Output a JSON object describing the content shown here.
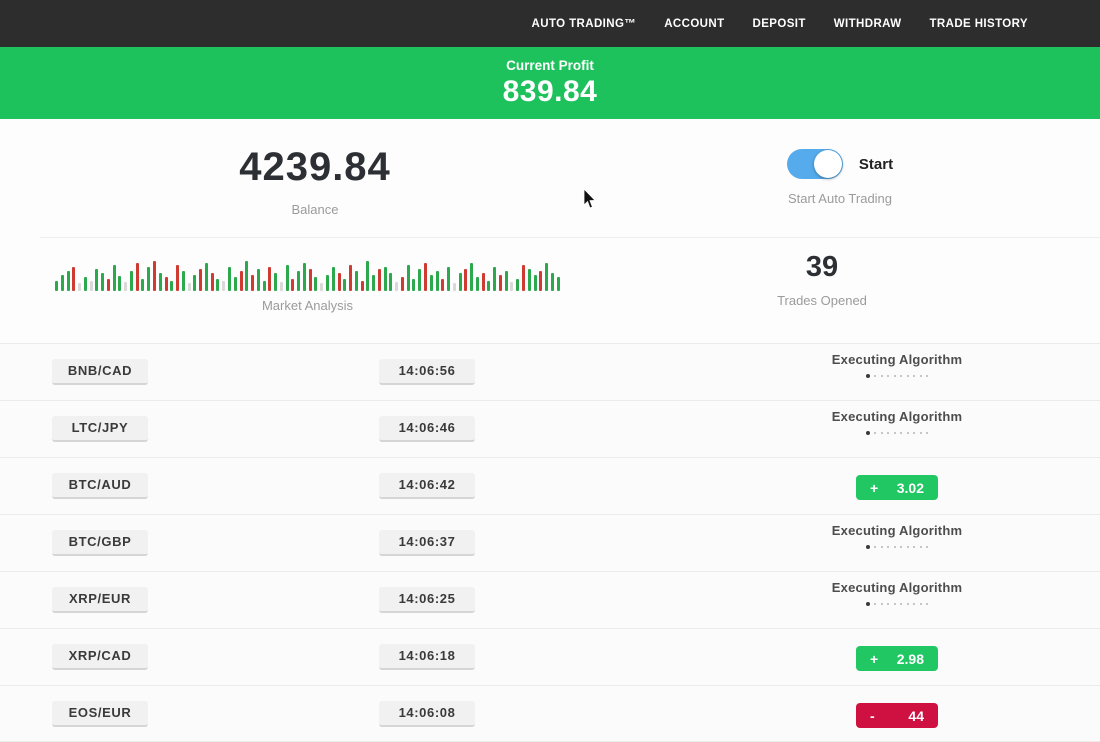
{
  "nav": {
    "items": [
      {
        "id": "auto-trading",
        "label": "AUTO TRADING™"
      },
      {
        "id": "account",
        "label": "ACCOUNT"
      },
      {
        "id": "deposit",
        "label": "DEPOSIT"
      },
      {
        "id": "withdraw",
        "label": "WITHDRAW"
      },
      {
        "id": "trade-history",
        "label": "TRADE HISTORY"
      }
    ]
  },
  "profit_banner": {
    "label": "Current Profit",
    "value": "839.84"
  },
  "stats": {
    "balance": {
      "value": "4239.84",
      "label": "Balance"
    },
    "auto_trading": {
      "toggle_label": "Start",
      "label": "Start Auto Trading",
      "toggle_on": true
    },
    "market_analysis": {
      "label": "Market Analysis",
      "bars": [
        [
          "g",
          10
        ],
        [
          "g",
          16
        ],
        [
          "g",
          20
        ],
        [
          "r",
          24
        ],
        [
          "l",
          8
        ],
        [
          "g",
          14
        ],
        [
          "l",
          10
        ],
        [
          "g",
          22
        ],
        [
          "g",
          18
        ],
        [
          "r",
          12
        ],
        [
          "g",
          26
        ],
        [
          "g",
          15
        ],
        [
          "l",
          9
        ],
        [
          "g",
          20
        ],
        [
          "r",
          28
        ],
        [
          "g",
          12
        ],
        [
          "g",
          24
        ],
        [
          "r",
          30
        ],
        [
          "g",
          18
        ],
        [
          "r",
          14
        ],
        [
          "g",
          10
        ],
        [
          "r",
          26
        ],
        [
          "g",
          20
        ],
        [
          "l",
          8
        ],
        [
          "g",
          16
        ],
        [
          "r",
          22
        ],
        [
          "g",
          28
        ],
        [
          "r",
          18
        ],
        [
          "g",
          12
        ],
        [
          "l",
          10
        ],
        [
          "g",
          24
        ],
        [
          "g",
          14
        ],
        [
          "r",
          20
        ],
        [
          "g",
          30
        ],
        [
          "r",
          16
        ],
        [
          "g",
          22
        ],
        [
          "g",
          10
        ],
        [
          "r",
          24
        ],
        [
          "g",
          18
        ],
        [
          "l",
          9
        ],
        [
          "g",
          26
        ],
        [
          "r",
          12
        ],
        [
          "g",
          20
        ],
        [
          "g",
          28
        ],
        [
          "r",
          22
        ],
        [
          "g",
          14
        ],
        [
          "l",
          8
        ],
        [
          "g",
          16
        ],
        [
          "g",
          24
        ],
        [
          "r",
          18
        ],
        [
          "g",
          12
        ],
        [
          "r",
          26
        ],
        [
          "g",
          20
        ],
        [
          "r",
          10
        ],
        [
          "g",
          30
        ],
        [
          "g",
          16
        ],
        [
          "r",
          22
        ],
        [
          "g",
          24
        ],
        [
          "g",
          18
        ],
        [
          "l",
          9
        ],
        [
          "r",
          14
        ],
        [
          "g",
          26
        ],
        [
          "g",
          12
        ],
        [
          "g",
          22
        ],
        [
          "r",
          28
        ],
        [
          "g",
          16
        ],
        [
          "g",
          20
        ],
        [
          "r",
          12
        ],
        [
          "g",
          24
        ],
        [
          "l",
          8
        ],
        [
          "g",
          18
        ],
        [
          "r",
          22
        ],
        [
          "g",
          28
        ],
        [
          "g",
          14
        ],
        [
          "r",
          18
        ],
        [
          "g",
          10
        ],
        [
          "g",
          24
        ],
        [
          "r",
          16
        ],
        [
          "g",
          20
        ],
        [
          "l",
          9
        ],
        [
          "g",
          12
        ],
        [
          "r",
          26
        ],
        [
          "g",
          22
        ],
        [
          "g",
          16
        ],
        [
          "r",
          20
        ],
        [
          "g",
          28
        ],
        [
          "g",
          18
        ],
        [
          "g",
          14
        ]
      ]
    },
    "trades_opened": {
      "value": "39",
      "label": "Trades Opened"
    }
  },
  "trades": {
    "executing_label": "Executing Algorithm",
    "executing_dots_total": 10,
    "rows": [
      {
        "pair": "BNB/CAD",
        "time": "14:06:56",
        "status": "executing"
      },
      {
        "pair": "LTC/JPY",
        "time": "14:06:46",
        "status": "executing"
      },
      {
        "pair": "BTC/AUD",
        "time": "14:06:42",
        "status": "profit",
        "sign": "+",
        "amount": "3.02"
      },
      {
        "pair": "BTC/GBP",
        "time": "14:06:37",
        "status": "executing"
      },
      {
        "pair": "XRP/EUR",
        "time": "14:06:25",
        "status": "executing"
      },
      {
        "pair": "XRP/CAD",
        "time": "14:06:18",
        "status": "profit",
        "sign": "+",
        "amount": "2.98"
      },
      {
        "pair": "EOS/EUR",
        "time": "14:06:08",
        "status": "loss",
        "sign": "-",
        "amount": "44"
      }
    ]
  },
  "colors": {
    "nav_bg": "#2d2d2d",
    "banner_green": "#1ec25d",
    "profit_green": "#20c763",
    "loss_red": "#ce1140",
    "toggle_blue": "#55abec",
    "bar_green": "#2ca94c",
    "bar_red": "#cf3b30",
    "bar_light": "#d9d9d9"
  }
}
